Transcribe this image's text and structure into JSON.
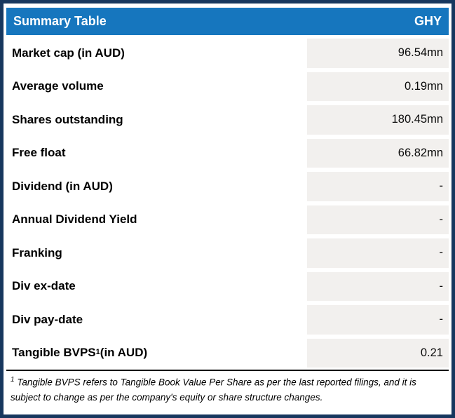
{
  "header": {
    "title": "Summary Table",
    "ticker": "GHY"
  },
  "rows": [
    {
      "label": "Market cap (in AUD)",
      "sup": "",
      "suffix": "",
      "value": "96.54mn"
    },
    {
      "label": "Average volume",
      "sup": "",
      "suffix": "",
      "value": "0.19mn"
    },
    {
      "label": "Shares outstanding",
      "sup": "",
      "suffix": "",
      "value": "180.45mn"
    },
    {
      "label": "Free float",
      "sup": "",
      "suffix": "",
      "value": "66.82mn"
    },
    {
      "label": "Dividend (in AUD)",
      "sup": "",
      "suffix": "",
      "value": "-"
    },
    {
      "label": "Annual Dividend Yield",
      "sup": "",
      "suffix": "",
      "value": "-"
    },
    {
      "label": "Franking",
      "sup": "",
      "suffix": "",
      "value": "-"
    },
    {
      "label": "Div ex-date",
      "sup": "",
      "suffix": "",
      "value": "-"
    },
    {
      "label": "Div pay-date",
      "sup": "",
      "suffix": "",
      "value": "-"
    },
    {
      "label": "Tangible BVPS",
      "sup": "1",
      "suffix": " (in AUD)",
      "value": "0.21"
    }
  ],
  "footnote": {
    "sup": "1",
    "text": " Tangible BVPS refers to Tangible Book Value Per Share as per the last reported filings, and it is subject to change as per the company's equity or share structure changes."
  },
  "colors": {
    "border_navy": "#17375E",
    "header_blue": "#1676BE",
    "cell_gray": "#F2F0EE"
  }
}
